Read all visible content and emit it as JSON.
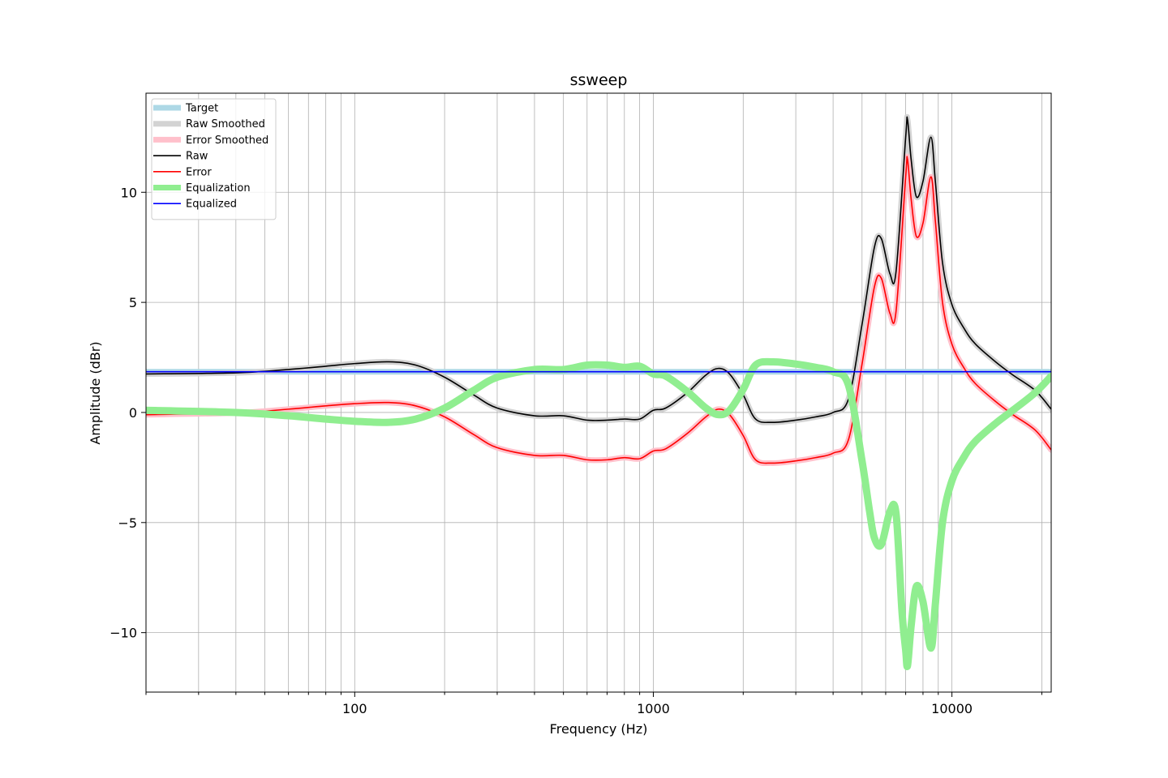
{
  "chart_data": {
    "type": "line",
    "title": "ssweep",
    "xlabel": "Frequency (Hz)",
    "ylabel": "Amplitude (dBr)",
    "xscale": "log",
    "xlim": [
      20,
      21500
    ],
    "ylim": [
      -12.7,
      14.5
    ],
    "grid": true,
    "legend_position": "top-left",
    "x_ticks": [
      {
        "value": 100,
        "label": "100"
      },
      {
        "value": 1000,
        "label": "1000"
      },
      {
        "value": 10000,
        "label": "10000"
      }
    ],
    "y_ticks": [
      {
        "value": -10,
        "label": "−10"
      },
      {
        "value": -5,
        "label": "−5"
      },
      {
        "value": 0,
        "label": "0"
      },
      {
        "value": 5,
        "label": "5"
      },
      {
        "value": 10,
        "label": "10"
      }
    ],
    "series": [
      {
        "name": "Target",
        "color": "#add8e6",
        "style": "thick",
        "points": [
          [
            20,
            1.85
          ],
          [
            21500,
            1.85
          ]
        ]
      },
      {
        "name": "Raw Smoothed",
        "color": "#d3d3d3",
        "style": "thick",
        "points": [
          [
            20,
            1.75
          ],
          [
            40,
            1.8
          ],
          [
            60,
            1.95
          ],
          [
            80,
            2.1
          ],
          [
            100,
            2.22
          ],
          [
            130,
            2.3
          ],
          [
            160,
            2.15
          ],
          [
            200,
            1.6
          ],
          [
            250,
            0.8
          ],
          [
            300,
            0.2
          ],
          [
            400,
            -0.15
          ],
          [
            500,
            -0.15
          ],
          [
            600,
            -0.35
          ],
          [
            700,
            -0.35
          ],
          [
            800,
            -0.3
          ],
          [
            900,
            -0.3
          ],
          [
            1000,
            0.1
          ],
          [
            1100,
            0.2
          ],
          [
            1300,
            0.9
          ],
          [
            1500,
            1.7
          ],
          [
            1650,
            2.0
          ],
          [
            1800,
            1.75
          ],
          [
            2000,
            0.8
          ],
          [
            2200,
            -0.3
          ],
          [
            2500,
            -0.45
          ],
          [
            3000,
            -0.35
          ],
          [
            3500,
            -0.2
          ],
          [
            4000,
            0.0
          ],
          [
            4500,
            0.6
          ],
          [
            5000,
            4.0
          ],
          [
            5500,
            7.5
          ],
          [
            5800,
            7.9
          ],
          [
            6200,
            6.3
          ],
          [
            6500,
            6.4
          ],
          [
            7000,
            12.5
          ],
          [
            7100,
            13.3
          ],
          [
            7300,
            11.5
          ],
          [
            7600,
            9.8
          ],
          [
            8000,
            10.5
          ],
          [
            8500,
            12.5
          ],
          [
            8800,
            10.5
          ],
          [
            9300,
            6.8
          ],
          [
            10000,
            4.9
          ],
          [
            11000,
            3.8
          ],
          [
            12000,
            3.1
          ],
          [
            14000,
            2.3
          ],
          [
            16000,
            1.7
          ],
          [
            19000,
            1.0
          ],
          [
            21500,
            0.15
          ]
        ]
      },
      {
        "name": "Error Smoothed",
        "color": "#ffc0cb",
        "style": "thick",
        "points": [
          [
            20,
            -0.1
          ],
          [
            40,
            -0.02
          ],
          [
            60,
            0.15
          ],
          [
            80,
            0.3
          ],
          [
            100,
            0.4
          ],
          [
            130,
            0.45
          ],
          [
            160,
            0.3
          ],
          [
            200,
            -0.2
          ],
          [
            250,
            -1.0
          ],
          [
            300,
            -1.6
          ],
          [
            400,
            -1.95
          ],
          [
            500,
            -1.95
          ],
          [
            600,
            -2.15
          ],
          [
            700,
            -2.15
          ],
          [
            800,
            -2.05
          ],
          [
            900,
            -2.1
          ],
          [
            1000,
            -1.75
          ],
          [
            1100,
            -1.65
          ],
          [
            1300,
            -0.95
          ],
          [
            1500,
            -0.2
          ],
          [
            1650,
            0.15
          ],
          [
            1800,
            -0.1
          ],
          [
            2000,
            -1.05
          ],
          [
            2200,
            -2.15
          ],
          [
            2500,
            -2.3
          ],
          [
            3000,
            -2.2
          ],
          [
            3500,
            -2.05
          ],
          [
            4000,
            -1.85
          ],
          [
            4500,
            -1.25
          ],
          [
            5000,
            2.2
          ],
          [
            5500,
            5.7
          ],
          [
            5800,
            6.1
          ],
          [
            6200,
            4.5
          ],
          [
            6500,
            4.6
          ],
          [
            7000,
            10.7
          ],
          [
            7100,
            11.5
          ],
          [
            7300,
            9.7
          ],
          [
            7600,
            8.0
          ],
          [
            8000,
            8.6
          ],
          [
            8500,
            10.7
          ],
          [
            8800,
            8.7
          ],
          [
            9300,
            5.0
          ],
          [
            10000,
            3.1
          ],
          [
            11000,
            2.0
          ],
          [
            12000,
            1.3
          ],
          [
            14000,
            0.5
          ],
          [
            16000,
            -0.1
          ],
          [
            19000,
            -0.8
          ],
          [
            21500,
            -1.7
          ]
        ]
      },
      {
        "name": "Raw",
        "color": "#000000",
        "style": "thin",
        "points": [
          [
            20,
            1.75
          ],
          [
            40,
            1.8
          ],
          [
            60,
            1.95
          ],
          [
            80,
            2.1
          ],
          [
            100,
            2.22
          ],
          [
            130,
            2.3
          ],
          [
            160,
            2.15
          ],
          [
            200,
            1.6
          ],
          [
            250,
            0.8
          ],
          [
            300,
            0.2
          ],
          [
            400,
            -0.15
          ],
          [
            500,
            -0.15
          ],
          [
            600,
            -0.35
          ],
          [
            700,
            -0.35
          ],
          [
            800,
            -0.3
          ],
          [
            900,
            -0.3
          ],
          [
            1000,
            0.1
          ],
          [
            1100,
            0.2
          ],
          [
            1300,
            0.9
          ],
          [
            1500,
            1.7
          ],
          [
            1650,
            2.0
          ],
          [
            1800,
            1.75
          ],
          [
            2000,
            0.8
          ],
          [
            2200,
            -0.3
          ],
          [
            2500,
            -0.45
          ],
          [
            3000,
            -0.35
          ],
          [
            3500,
            -0.2
          ],
          [
            4000,
            0.0
          ],
          [
            4500,
            0.6
          ],
          [
            5000,
            4.0
          ],
          [
            5500,
            7.5
          ],
          [
            5800,
            7.9
          ],
          [
            6200,
            6.3
          ],
          [
            6500,
            6.4
          ],
          [
            7000,
            12.5
          ],
          [
            7100,
            13.3
          ],
          [
            7300,
            11.5
          ],
          [
            7600,
            9.8
          ],
          [
            8000,
            10.5
          ],
          [
            8500,
            12.5
          ],
          [
            8800,
            10.5
          ],
          [
            9300,
            6.8
          ],
          [
            10000,
            4.9
          ],
          [
            11000,
            3.8
          ],
          [
            12000,
            3.1
          ],
          [
            14000,
            2.3
          ],
          [
            16000,
            1.7
          ],
          [
            19000,
            1.0
          ],
          [
            21500,
            0.15
          ]
        ]
      },
      {
        "name": "Error",
        "color": "#ff0000",
        "style": "thin",
        "points": [
          [
            20,
            -0.1
          ],
          [
            40,
            -0.02
          ],
          [
            60,
            0.15
          ],
          [
            80,
            0.3
          ],
          [
            100,
            0.4
          ],
          [
            130,
            0.45
          ],
          [
            160,
            0.3
          ],
          [
            200,
            -0.2
          ],
          [
            250,
            -1.0
          ],
          [
            300,
            -1.6
          ],
          [
            400,
            -1.95
          ],
          [
            500,
            -1.95
          ],
          [
            600,
            -2.15
          ],
          [
            700,
            -2.15
          ],
          [
            800,
            -2.05
          ],
          [
            900,
            -2.1
          ],
          [
            1000,
            -1.75
          ],
          [
            1100,
            -1.65
          ],
          [
            1300,
            -0.95
          ],
          [
            1500,
            -0.2
          ],
          [
            1650,
            0.15
          ],
          [
            1800,
            -0.1
          ],
          [
            2000,
            -1.05
          ],
          [
            2200,
            -2.15
          ],
          [
            2500,
            -2.3
          ],
          [
            3000,
            -2.2
          ],
          [
            3500,
            -2.05
          ],
          [
            4000,
            -1.85
          ],
          [
            4500,
            -1.25
          ],
          [
            5000,
            2.2
          ],
          [
            5500,
            5.7
          ],
          [
            5800,
            6.1
          ],
          [
            6200,
            4.5
          ],
          [
            6500,
            4.6
          ],
          [
            7000,
            10.7
          ],
          [
            7100,
            11.5
          ],
          [
            7300,
            9.7
          ],
          [
            7600,
            8.0
          ],
          [
            8000,
            8.6
          ],
          [
            8500,
            10.7
          ],
          [
            8800,
            8.7
          ],
          [
            9300,
            5.0
          ],
          [
            10000,
            3.1
          ],
          [
            11000,
            2.0
          ],
          [
            12000,
            1.3
          ],
          [
            14000,
            0.5
          ],
          [
            16000,
            -0.1
          ],
          [
            19000,
            -0.8
          ],
          [
            21500,
            -1.7
          ]
        ]
      },
      {
        "name": "Equalization",
        "color": "#90ee90",
        "style": "thicker",
        "points": [
          [
            20,
            0.1
          ],
          [
            40,
            0.0
          ],
          [
            60,
            -0.15
          ],
          [
            80,
            -0.3
          ],
          [
            100,
            -0.4
          ],
          [
            130,
            -0.45
          ],
          [
            160,
            -0.3
          ],
          [
            200,
            0.2
          ],
          [
            250,
            1.0
          ],
          [
            300,
            1.6
          ],
          [
            400,
            1.95
          ],
          [
            500,
            1.95
          ],
          [
            600,
            2.15
          ],
          [
            700,
            2.15
          ],
          [
            800,
            2.05
          ],
          [
            900,
            2.1
          ],
          [
            1000,
            1.75
          ],
          [
            1100,
            1.65
          ],
          [
            1300,
            0.95
          ],
          [
            1500,
            0.2
          ],
          [
            1650,
            -0.1
          ],
          [
            1800,
            0.1
          ],
          [
            2000,
            1.05
          ],
          [
            2200,
            2.15
          ],
          [
            2500,
            2.3
          ],
          [
            3000,
            2.2
          ],
          [
            3500,
            2.05
          ],
          [
            4000,
            1.85
          ],
          [
            4500,
            1.25
          ],
          [
            5000,
            -2.2
          ],
          [
            5300,
            -4.5
          ],
          [
            5500,
            -5.7
          ],
          [
            5800,
            -6.0
          ],
          [
            6200,
            -4.5
          ],
          [
            6500,
            -4.6
          ],
          [
            6800,
            -9.0
          ],
          [
            7000,
            -10.8
          ],
          [
            7100,
            -11.5
          ],
          [
            7300,
            -9.7
          ],
          [
            7600,
            -7.9
          ],
          [
            8000,
            -8.6
          ],
          [
            8500,
            -10.7
          ],
          [
            8800,
            -8.7
          ],
          [
            9300,
            -5.0
          ],
          [
            10000,
            -3.1
          ],
          [
            11000,
            -2.0
          ],
          [
            12000,
            -1.3
          ],
          [
            14000,
            -0.5
          ],
          [
            16000,
            0.1
          ],
          [
            19000,
            0.9
          ],
          [
            21500,
            1.65
          ]
        ]
      },
      {
        "name": "Equalized",
        "color": "#0000ff",
        "style": "thin",
        "points": [
          [
            20,
            1.85
          ],
          [
            21500,
            1.85
          ]
        ]
      }
    ]
  }
}
